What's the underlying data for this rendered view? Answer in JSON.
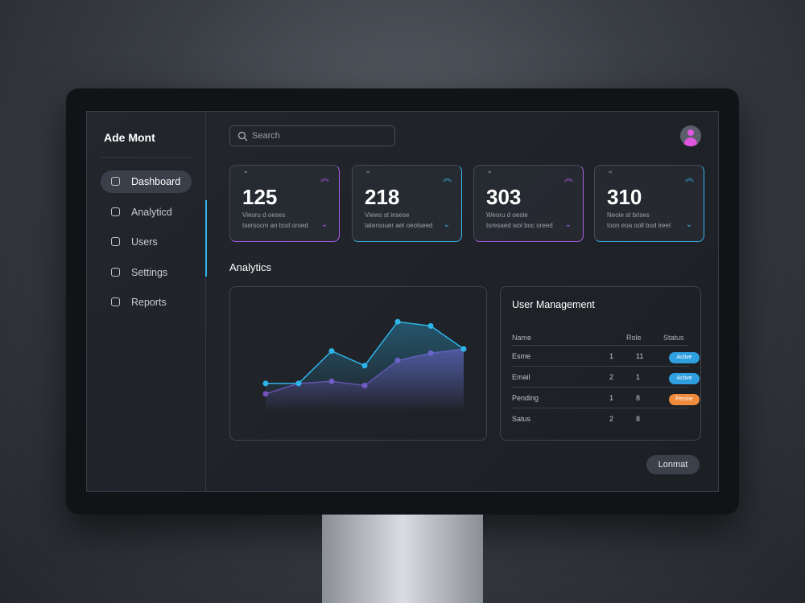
{
  "sidebar": {
    "brand": "Ade Mont",
    "nav": [
      "Dashboard",
      "Analyticd",
      "Users",
      "Settings",
      "Reports"
    ]
  },
  "search": {
    "placeholder": "Search"
  },
  "cards": [
    {
      "value": 125,
      "line1": "Vieoru d oeses",
      "line2": "tsersocm an bod oroed",
      "color": "#b05cf0"
    },
    {
      "value": 218,
      "line1": "Viewo st insese",
      "line2": "tatersouer aet oeotseed",
      "color": "#38b6f0"
    },
    {
      "value": 303,
      "line1": "Weoru d oeste",
      "line2": "tsresaed woi boc oreed",
      "color": "#a860e8"
    },
    {
      "value": 310,
      "line1": "Neoie st brises",
      "line2": "toon eoa ooll bod ireet",
      "color": "#38b6f0"
    }
  ],
  "analytics": {
    "title": "Analytics",
    "chart_data": {
      "type": "line",
      "ylim": [
        0,
        100
      ],
      "series": [
        {
          "color": "#2fb4ea",
          "values": [
            27,
            27,
            58,
            44,
            86,
            82,
            60
          ]
        },
        {
          "color": "#7a4fc0",
          "values": [
            17,
            27,
            29,
            25,
            49,
            56,
            60
          ]
        }
      ]
    }
  },
  "user_management": {
    "title": "User Management",
    "columns": [
      "Name",
      "Role",
      "Status"
    ],
    "rows": [
      [
        "Esme",
        1,
        11,
        "Active"
      ],
      [
        "Email",
        2,
        1,
        "Active"
      ],
      [
        "Pending",
        1,
        8,
        "Pecine"
      ],
      [
        "Satus",
        2,
        8,
        ""
      ]
    ]
  },
  "button": {
    "label": "Lonmat"
  }
}
